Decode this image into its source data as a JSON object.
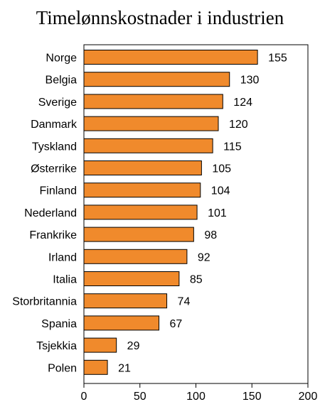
{
  "chart_data": {
    "type": "bar",
    "orientation": "horizontal",
    "title": "Timelønnskostnader i industrien",
    "xlabel": "",
    "ylabel": "",
    "categories": [
      "Norge",
      "Belgia",
      "Sverige",
      "Danmark",
      "Tyskland",
      "Østerrike",
      "Finland",
      "Nederland",
      "Frankrike",
      "Irland",
      "Italia",
      "Storbritannia",
      "Spania",
      "Tsjekkia",
      "Polen"
    ],
    "values": [
      155,
      130,
      124,
      120,
      115,
      105,
      104,
      101,
      98,
      92,
      85,
      74,
      67,
      29,
      21
    ],
    "value_labels": [
      "155",
      "130",
      "124",
      "120",
      "115",
      "105",
      "104",
      "101",
      "98",
      "92",
      "85",
      "74",
      "67",
      "29",
      "21"
    ],
    "xlim": [
      0,
      200
    ],
    "xticks": [
      0,
      50,
      100,
      150,
      200
    ],
    "xtick_labels": [
      "0",
      "50",
      "100",
      "150",
      "200"
    ],
    "grid": false,
    "bar_color": "#F08A2C",
    "bar_edge_color": "#000000"
  }
}
